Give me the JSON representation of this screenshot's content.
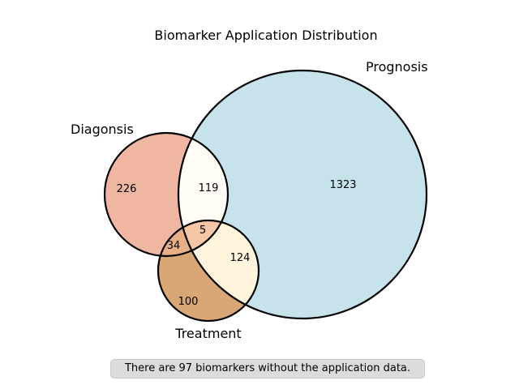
{
  "title": "Biomarker Application Distribution",
  "sets": {
    "diagnosis": {
      "label": "Diagonsis",
      "color": "#efb6a2"
    },
    "prognosis": {
      "label": "Prognosis",
      "color": "#c6e3ec"
    },
    "treatment": {
      "label": "Treatment",
      "color": "#d9a675"
    }
  },
  "regions": {
    "diagnosis_only": "226",
    "prognosis_only": "1323",
    "treatment_only": "100",
    "diagnosis_prognosis": "119",
    "diagnosis_treatment": "34",
    "prognosis_treatment": "124",
    "all_three": "5"
  },
  "region_colors": {
    "diagnosis_prognosis": "#fffdf5",
    "prognosis_treatment": "#fff5dc",
    "diagnosis_treatment": "#e8b087",
    "all_three": "#f5c6a6"
  },
  "note": "There are 97 biomarkers without the application data."
}
